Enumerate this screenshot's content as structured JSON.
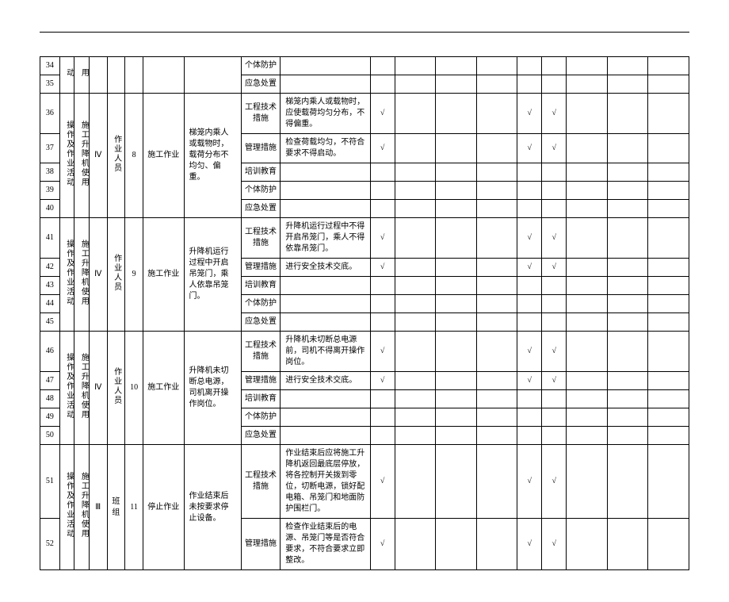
{
  "colors": {
    "border": "#000000",
    "bg": "#ffffff",
    "text": "#000000",
    "check": "√"
  },
  "font": {
    "family": "SimSun",
    "size_pt": 10
  },
  "vlabels": {
    "op": "操作及作业活动",
    "eq": "施工升降机使用",
    "per_zy": "作业人员",
    "per_bz": "班组"
  },
  "measure_types": [
    "工程技术措施",
    "管理措施",
    "培训教育",
    "个体防护",
    "应急处置"
  ],
  "groups": [
    {
      "idx_from": 34,
      "idx_to": 35,
      "op_label": "动",
      "eq_label": "用",
      "level": "",
      "person": "",
      "num": "",
      "activity": "",
      "risk": "",
      "rows": [
        {
          "idx": 34,
          "mtype": "个体防护",
          "measure": "",
          "checks": [
            0,
            0,
            0,
            0,
            0,
            0
          ]
        },
        {
          "idx": 35,
          "mtype": "应急处置",
          "measure": "",
          "checks": [
            0,
            0,
            0,
            0,
            0,
            0
          ]
        }
      ]
    },
    {
      "idx_from": 36,
      "idx_to": 40,
      "op_label": "操作及作业活动",
      "eq_label": "施工升降机使用",
      "level": "Ⅳ",
      "person": "作业人员",
      "num": "8",
      "activity": "施工作业",
      "risk": "梯笼内乘人或载物时，载荷分布不均匀、偏重。",
      "rows": [
        {
          "idx": 36,
          "mtype": "工程技术措施",
          "measure": "梯笼内乘人或载物时，应使载荷均匀分布，不得偏重。",
          "checks": [
            1,
            0,
            0,
            0,
            1,
            1
          ]
        },
        {
          "idx": 37,
          "mtype": "管理措施",
          "measure": "检查荷载均匀，不符合要求不得启动。",
          "checks": [
            1,
            0,
            0,
            0,
            1,
            1
          ]
        },
        {
          "idx": 38,
          "mtype": "培训教育",
          "measure": "",
          "checks": [
            0,
            0,
            0,
            0,
            0,
            0
          ]
        },
        {
          "idx": 39,
          "mtype": "个体防护",
          "measure": "",
          "checks": [
            0,
            0,
            0,
            0,
            0,
            0
          ]
        },
        {
          "idx": 40,
          "mtype": "应急处置",
          "measure": "",
          "checks": [
            0,
            0,
            0,
            0,
            0,
            0
          ]
        }
      ]
    },
    {
      "idx_from": 41,
      "idx_to": 45,
      "op_label": "操作及作业活动",
      "eq_label": "施工升降机使用",
      "level": "Ⅳ",
      "person": "作业人员",
      "num": "9",
      "activity": "施工作业",
      "risk": "升降机运行过程中开启吊笼门，乘人依靠吊笼门。",
      "rows": [
        {
          "idx": 41,
          "mtype": "工程技术措施",
          "measure": "升降机运行过程中不得开启吊笼门，乘人不得依靠吊笼门。",
          "checks": [
            1,
            0,
            0,
            0,
            1,
            1
          ]
        },
        {
          "idx": 42,
          "mtype": "管理措施",
          "measure": "进行安全技术交底。",
          "checks": [
            1,
            0,
            0,
            0,
            1,
            1
          ]
        },
        {
          "idx": 43,
          "mtype": "培训教育",
          "measure": "",
          "checks": [
            0,
            0,
            0,
            0,
            0,
            0
          ]
        },
        {
          "idx": 44,
          "mtype": "个体防护",
          "measure": "",
          "checks": [
            0,
            0,
            0,
            0,
            0,
            0
          ]
        },
        {
          "idx": 45,
          "mtype": "应急处置",
          "measure": "",
          "checks": [
            0,
            0,
            0,
            0,
            0,
            0
          ]
        }
      ]
    },
    {
      "idx_from": 46,
      "idx_to": 50,
      "op_label": "操作及作业活动",
      "eq_label": "施工升降机使用",
      "level": "Ⅳ",
      "person": "作业人员",
      "num": "10",
      "activity": "施工作业",
      "risk": "升降机未切断总电源，司机离开操作岗位。",
      "rows": [
        {
          "idx": 46,
          "mtype": "工程技术措施",
          "measure": "升降机未切断总电源前，司机不得离开操作岗位。",
          "checks": [
            1,
            0,
            0,
            0,
            1,
            1
          ]
        },
        {
          "idx": 47,
          "mtype": "管理措施",
          "measure": "进行安全技术交底。",
          "checks": [
            1,
            0,
            0,
            0,
            1,
            1
          ]
        },
        {
          "idx": 48,
          "mtype": "培训教育",
          "measure": "",
          "checks": [
            0,
            0,
            0,
            0,
            0,
            0
          ]
        },
        {
          "idx": 49,
          "mtype": "个体防护",
          "measure": "",
          "checks": [
            0,
            0,
            0,
            0,
            0,
            0
          ]
        },
        {
          "idx": 50,
          "mtype": "应急处置",
          "measure": "",
          "checks": [
            0,
            0,
            0,
            0,
            0,
            0
          ]
        }
      ]
    },
    {
      "idx_from": 51,
      "idx_to": 52,
      "op_label": "操作及作业活动",
      "eq_label": "施工升降机使用",
      "level": "Ⅲ",
      "person": "班组",
      "num": "11",
      "activity": "停止作业",
      "risk": "作业结束后未按要求停止设备。",
      "rows": [
        {
          "idx": 51,
          "mtype": "工程技术措施",
          "measure": "作业结束后应将施工升降机返回最底层停放，将各控制开关拨到零位，切断电源，锁好配电箱、吊笼门和地面防护围栏门。",
          "checks": [
            1,
            0,
            0,
            0,
            1,
            1
          ]
        },
        {
          "idx": 52,
          "mtype": "管理措施",
          "measure": "检查作业结束后的电源、吊笼门等是否符合要求，不符合要求立即整改。",
          "checks": [
            1,
            0,
            0,
            0,
            1,
            1
          ]
        }
      ]
    }
  ]
}
